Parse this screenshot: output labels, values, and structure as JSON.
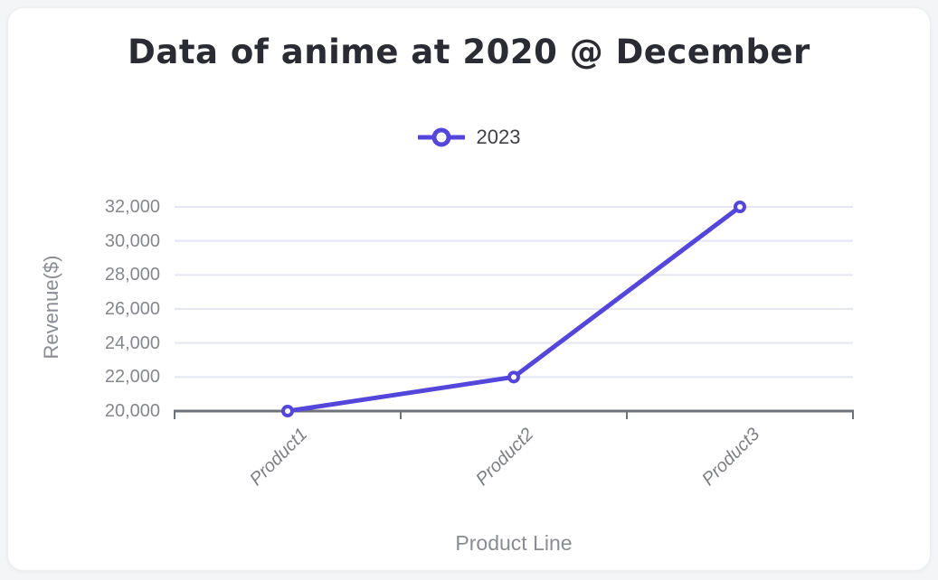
{
  "page_background": "#F3F5F7",
  "card_background": "#FFFFFF",
  "theme": {
    "title_color": "#2B2B33",
    "legend_text_color": "#3F3F45",
    "series_color": "#5546DB",
    "grid_color": "#E5E8F2",
    "axis_color": "#6F7278",
    "y_tick_label_color": "#85878D",
    "x_tick_label_color": "#7D7F85",
    "axis_title_color": "#8A8C92"
  },
  "chart_data": {
    "type": "line",
    "title": "Data of anime at 2020 @ December",
    "xlabel": "Product Line",
    "ylabel": "Revenue($)",
    "categories": [
      "Product1",
      "Product2",
      "Product3"
    ],
    "series": [
      {
        "name": "2023",
        "values": [
          20000,
          22000,
          32000
        ],
        "color": "#5546DB",
        "marker": "open-circle"
      }
    ],
    "ylim": [
      20000,
      32000
    ],
    "ytick_step": 2000,
    "ytick_labels": [
      "20,000",
      "22,000",
      "24,000",
      "26,000",
      "28,000",
      "30,000",
      "32,000"
    ],
    "grid": true,
    "legend_position": "top-center"
  }
}
